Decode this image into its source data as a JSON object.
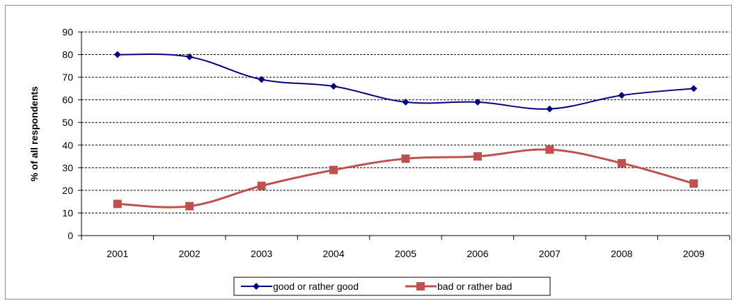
{
  "chart_data": {
    "type": "line",
    "title": "",
    "xlabel": "",
    "ylabel": "% of all respondents",
    "categories": [
      "2001",
      "2002",
      "2003",
      "2004",
      "2005",
      "2006",
      "2007",
      "2008",
      "2009"
    ],
    "yticks": [
      0,
      10,
      20,
      30,
      40,
      50,
      60,
      70,
      80,
      90
    ],
    "ylim": [
      0,
      90
    ],
    "grid": "horizontal-dashed",
    "legend_position": "bottom",
    "series": [
      {
        "name": "good or rather good",
        "values": [
          80,
          79,
          69,
          66,
          59,
          59,
          56,
          62,
          65
        ],
        "color": "#000080",
        "marker": "diamond"
      },
      {
        "name": "bad or rather bad",
        "values": [
          14,
          13,
          22,
          29,
          34,
          35,
          38,
          32,
          23
        ],
        "color": "#c0504d",
        "marker": "square"
      }
    ]
  }
}
